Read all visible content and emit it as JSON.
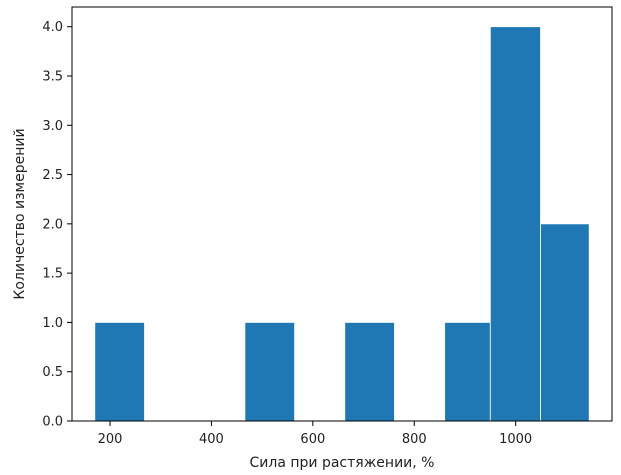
{
  "chart_data": {
    "type": "bar",
    "title": "",
    "xlabel": "Сила при растяжении, %",
    "ylabel": "Количество измерений",
    "xlim": [
      125,
      1190
    ],
    "ylim": [
      0,
      4.2
    ],
    "bins": [
      {
        "x0": 170,
        "x1": 268,
        "count": 1
      },
      {
        "x0": 268,
        "x1": 367,
        "count": 0
      },
      {
        "x0": 367,
        "x1": 466,
        "count": 0
      },
      {
        "x0": 466,
        "x1": 564,
        "count": 1
      },
      {
        "x0": 564,
        "x1": 663,
        "count": 0
      },
      {
        "x0": 663,
        "x1": 761,
        "count": 1
      },
      {
        "x0": 761,
        "x1": 860,
        "count": 0
      },
      {
        "x0": 860,
        "x1": 950,
        "count": 1
      },
      {
        "x0": 950,
        "x1": 1049,
        "count": 4
      },
      {
        "x0": 1049,
        "x1": 1145,
        "count": 2
      }
    ],
    "x_ticks": [
      200,
      400,
      600,
      800,
      1000
    ],
    "y_ticks": [
      0.0,
      0.5,
      1.0,
      1.5,
      2.0,
      2.5,
      3.0,
      3.5,
      4.0
    ],
    "bar_color": "#1f77b4",
    "grid": false,
    "legend": "none"
  }
}
